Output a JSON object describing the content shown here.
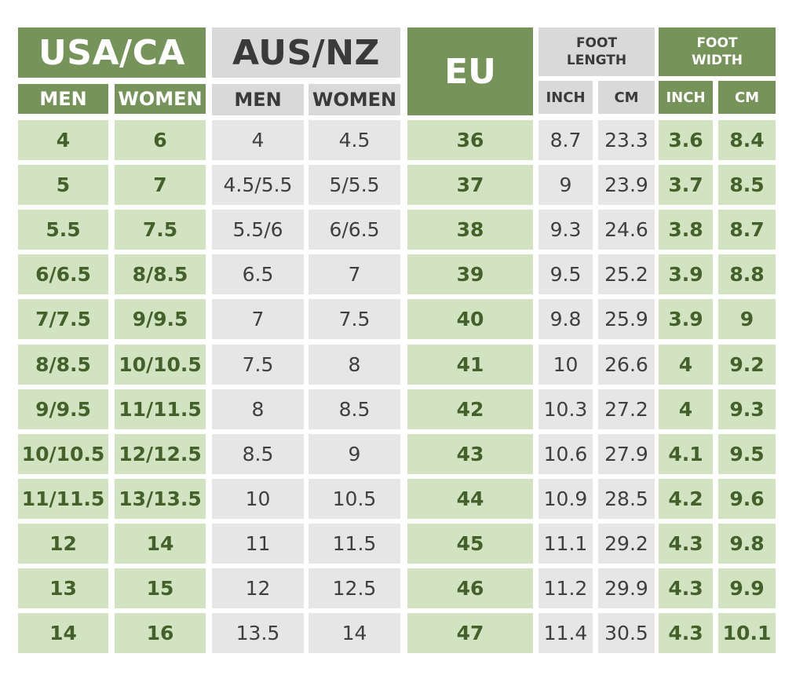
{
  "headers": {
    "usa_ca": "USA/CA",
    "aus_nz": "AUS/NZ",
    "eu": "EU",
    "foot_length": "FOOT LENGTH",
    "foot_width": "FOOT WIDTH",
    "men": "MEN",
    "women": "WOMEN",
    "inch": "INCH",
    "cm": "CM"
  },
  "rows": [
    [
      "4",
      "6",
      "4",
      "4.5",
      "36",
      "8.7",
      "23.3",
      "3.6",
      "8.4"
    ],
    [
      "5",
      "7",
      "4.5/5.5",
      "5/5.5",
      "37",
      "9",
      "23.9",
      "3.7",
      "8.5"
    ],
    [
      "5.5",
      "7.5",
      "5.5/6",
      "6/6.5",
      "38",
      "9.3",
      "24.6",
      "3.8",
      "8.7"
    ],
    [
      "6/6.5",
      "8/8.5",
      "6.5",
      "7",
      "39",
      "9.5",
      "25.2",
      "3.9",
      "8.8"
    ],
    [
      "7/7.5",
      "9/9.5",
      "7",
      "7.5",
      "40",
      "9.8",
      "25.9",
      "3.9",
      "9"
    ],
    [
      "8/8.5",
      "10/10.5",
      "7.5",
      "8",
      "41",
      "10",
      "26.6",
      "4",
      "9.2"
    ],
    [
      "9/9.5",
      "11/11.5",
      "8",
      "8.5",
      "42",
      "10.3",
      "27.2",
      "4",
      "9.3"
    ],
    [
      "10/10.5",
      "12/12.5",
      "8.5",
      "9",
      "43",
      "10.6",
      "27.9",
      "4.1",
      "9.5"
    ],
    [
      "11/11.5",
      "13/13.5",
      "10",
      "10.5",
      "44",
      "10.9",
      "28.5",
      "4.2",
      "9.6"
    ],
    [
      "12",
      "14",
      "11",
      "11.5",
      "45",
      "11.1",
      "29.2",
      "4.3",
      "9.8"
    ],
    [
      "13",
      "15",
      "12",
      "12.5",
      "46",
      "11.2",
      "29.9",
      "4.3",
      "9.9"
    ],
    [
      "14",
      "16",
      "13.5",
      "14",
      "47",
      "11.4",
      "30.5",
      "4.3",
      "10.1"
    ]
  ]
}
